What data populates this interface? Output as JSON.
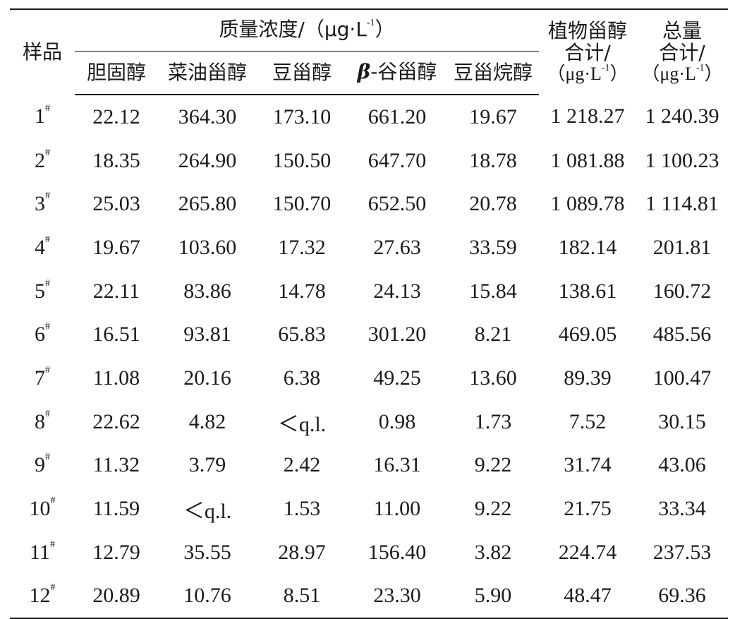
{
  "table": {
    "headers": {
      "sample": "样品",
      "mass_conc_group": "质量浓度/（μg·L",
      "mass_conc_group_sup": "-1",
      "mass_conc_group_end": "）",
      "cholesterol": "胆固醇",
      "campesterol": "菜油甾醇",
      "stigmasterol": "豆甾醇",
      "sitosterol_beta": "β",
      "sitosterol_rest": "-谷甾醇",
      "stigmastanol": "豆甾烷醇",
      "phyto_total_line1": "植物甾醇",
      "phyto_total_line2": "合计/",
      "phyto_total_unit": "（μg·L",
      "phyto_total_unit_sup": "-1",
      "phyto_total_unit_end": "）",
      "total_line1": "总量",
      "total_line2": "合计/",
      "total_unit": "（μg·L",
      "total_unit_sup": "-1",
      "total_unit_end": "）"
    },
    "rows": [
      {
        "id": "1",
        "mark": "#",
        "c": [
          "22.12",
          "364.30",
          "173.10",
          "661.20",
          "19.67",
          "1 218.27",
          "1 240.39"
        ]
      },
      {
        "id": "2",
        "mark": "#",
        "c": [
          "18.35",
          "264.90",
          "150.50",
          "647.70",
          "18.78",
          "1 081.88",
          "1 100.23"
        ]
      },
      {
        "id": "3",
        "mark": "#",
        "c": [
          "25.03",
          "265.80",
          "150.70",
          "652.50",
          "20.78",
          "1 089.78",
          "1 114.81"
        ]
      },
      {
        "id": "4",
        "mark": "#",
        "c": [
          "19.67",
          "103.60",
          "17.32",
          "27.63",
          "33.59",
          "182.14",
          "201.81"
        ]
      },
      {
        "id": "5",
        "mark": "#",
        "c": [
          "22.11",
          "83.86",
          "14.78",
          "24.13",
          "15.84",
          "138.61",
          "160.72"
        ]
      },
      {
        "id": "6",
        "mark": "#",
        "c": [
          "16.51",
          "93.81",
          "65.83",
          "301.20",
          "8.21",
          "469.05",
          "485.56"
        ]
      },
      {
        "id": "7",
        "mark": "#",
        "c": [
          "11.08",
          "20.16",
          "6.38",
          "49.25",
          "13.60",
          "89.39",
          "100.47"
        ]
      },
      {
        "id": "8",
        "mark": "#",
        "c": [
          "22.62",
          "4.82",
          "＜q.l.",
          "0.98",
          "1.73",
          "7.52",
          "30.15"
        ]
      },
      {
        "id": "9",
        "mark": "#",
        "c": [
          "11.32",
          "3.79",
          "2.42",
          "16.31",
          "9.22",
          "31.74",
          "43.06"
        ]
      },
      {
        "id": "10",
        "mark": "#",
        "c": [
          "11.59",
          "＜q.l.",
          "1.53",
          "11.00",
          "9.22",
          "21.75",
          "33.34"
        ]
      },
      {
        "id": "11",
        "mark": "#",
        "c": [
          "12.79",
          "35.55",
          "28.97",
          "156.40",
          "3.82",
          "224.74",
          "237.53"
        ]
      },
      {
        "id": "12",
        "mark": "#",
        "c": [
          "20.89",
          "10.76",
          "8.51",
          "23.30",
          "5.90",
          "48.47",
          "69.36"
        ]
      }
    ]
  }
}
